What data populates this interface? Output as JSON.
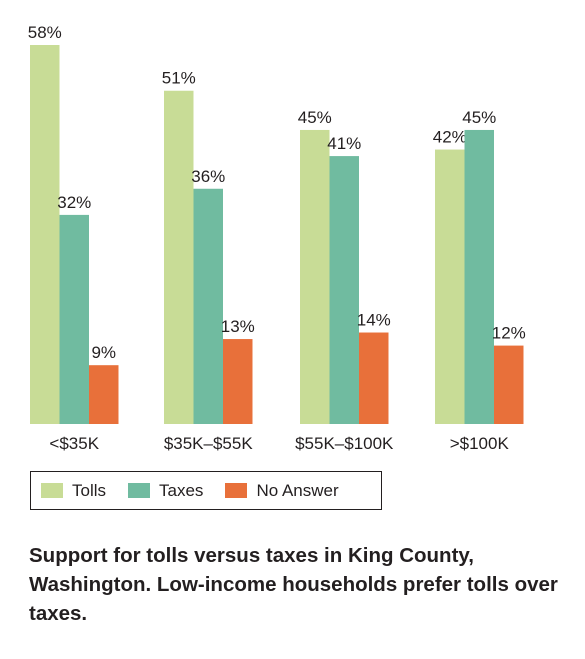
{
  "chart_data": {
    "type": "bar",
    "categories": [
      "<$35K",
      "$35K–$55K",
      "$55K–$100K",
      ">$100K"
    ],
    "series": [
      {
        "name": "Tolls",
        "values": [
          58,
          51,
          45,
          42
        ],
        "color": "#c8dc96",
        "labels": [
          "58%",
          "51%",
          "45%",
          "42%"
        ]
      },
      {
        "name": "Taxes",
        "values": [
          32,
          36,
          41,
          45
        ],
        "color": "#70bba0",
        "labels": [
          "32%",
          "36%",
          "41%",
          "45%"
        ]
      },
      {
        "name": "No Answer",
        "values": [
          9,
          13,
          14,
          12
        ],
        "color": "#e8703a",
        "labels": [
          "9%",
          "13%",
          "14%",
          "12%"
        ]
      }
    ],
    "ylim": [
      0,
      58
    ],
    "grid": false,
    "legend_position": "bottom",
    "caption": "Support for tolls versus taxes in King County, Washington. Low-income households prefer tolls over taxes."
  }
}
